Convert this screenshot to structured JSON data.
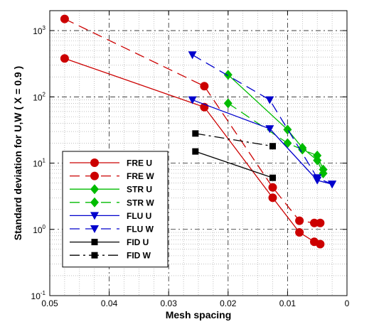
{
  "chart_data": {
    "type": "line",
    "xlabel": "Mesh spacing",
    "ylabel": "Standard deviation for U,W  ( X = 0.9 )",
    "x_reversed": true,
    "xlim": [
      0.05,
      0
    ],
    "ylim": [
      0.1,
      2000
    ],
    "yscale": "log",
    "grid": true,
    "legend_position": "lower-left",
    "x_ticks": [
      {
        "value": 0.05,
        "label": "0.05"
      },
      {
        "value": 0.04,
        "label": "0.04"
      },
      {
        "value": 0.03,
        "label": "0.03"
      },
      {
        "value": 0.02,
        "label": "0.02"
      },
      {
        "value": 0.01,
        "label": "0.01"
      },
      {
        "value": 0,
        "label": "0"
      }
    ],
    "y_ticks": [
      {
        "value": 0.1,
        "base": "10",
        "exp": "-1"
      },
      {
        "value": 1,
        "base": "10",
        "exp": "0"
      },
      {
        "value": 10,
        "base": "10",
        "exp": "1"
      },
      {
        "value": 100,
        "base": "10",
        "exp": "2"
      },
      {
        "value": 1000,
        "base": "10",
        "exp": "3"
      }
    ],
    "series": [
      {
        "name": "FRE U",
        "color": "#cc0000",
        "dash": "solid",
        "marker": "circle",
        "x": [
          0.0475,
          0.024,
          0.0125,
          0.008,
          0.0055,
          0.0045
        ],
        "y": [
          380,
          70,
          3.0,
          0.9,
          0.65,
          0.6
        ]
      },
      {
        "name": "FRE W",
        "color": "#cc0000",
        "dash": "dashed",
        "marker": "circle",
        "x": [
          0.0475,
          0.024,
          0.0125,
          0.008,
          0.0055,
          0.0045
        ],
        "y": [
          1500,
          145,
          4.3,
          1.35,
          1.25,
          1.25
        ]
      },
      {
        "name": "STR U",
        "color": "#00bb00",
        "dash": "solid",
        "marker": "diamond",
        "x": [
          0.02,
          0.01,
          0.0075,
          0.005,
          0.004
        ],
        "y": [
          215,
          32,
          17,
          11,
          7
        ]
      },
      {
        "name": "STR W",
        "color": "#00bb00",
        "dash": "dashed",
        "marker": "diamond",
        "x": [
          0.02,
          0.01,
          0.0075,
          0.005,
          0.004
        ],
        "y": [
          80,
          20,
          16,
          13,
          8
        ]
      },
      {
        "name": "FLU U",
        "color": "#0000cc",
        "dash": "solid",
        "marker": "triangle-down",
        "x": [
          0.026,
          0.013,
          0.005,
          0.0025
        ],
        "y": [
          90,
          33,
          5.5,
          4.8
        ]
      },
      {
        "name": "FLU W",
        "color": "#0000cc",
        "dash": "dashed",
        "marker": "triangle-down",
        "x": [
          0.026,
          0.013,
          0.005,
          0.0025
        ],
        "y": [
          430,
          90,
          6,
          4.8
        ]
      },
      {
        "name": "FID U",
        "color": "#000000",
        "dash": "solid",
        "marker": "square",
        "x": [
          0.0255,
          0.0125
        ],
        "y": [
          15,
          6
        ]
      },
      {
        "name": "FID W",
        "color": "#000000",
        "dash": "dashdot",
        "marker": "square",
        "x": [
          0.0255,
          0.0125
        ],
        "y": [
          28,
          18
        ]
      }
    ]
  }
}
